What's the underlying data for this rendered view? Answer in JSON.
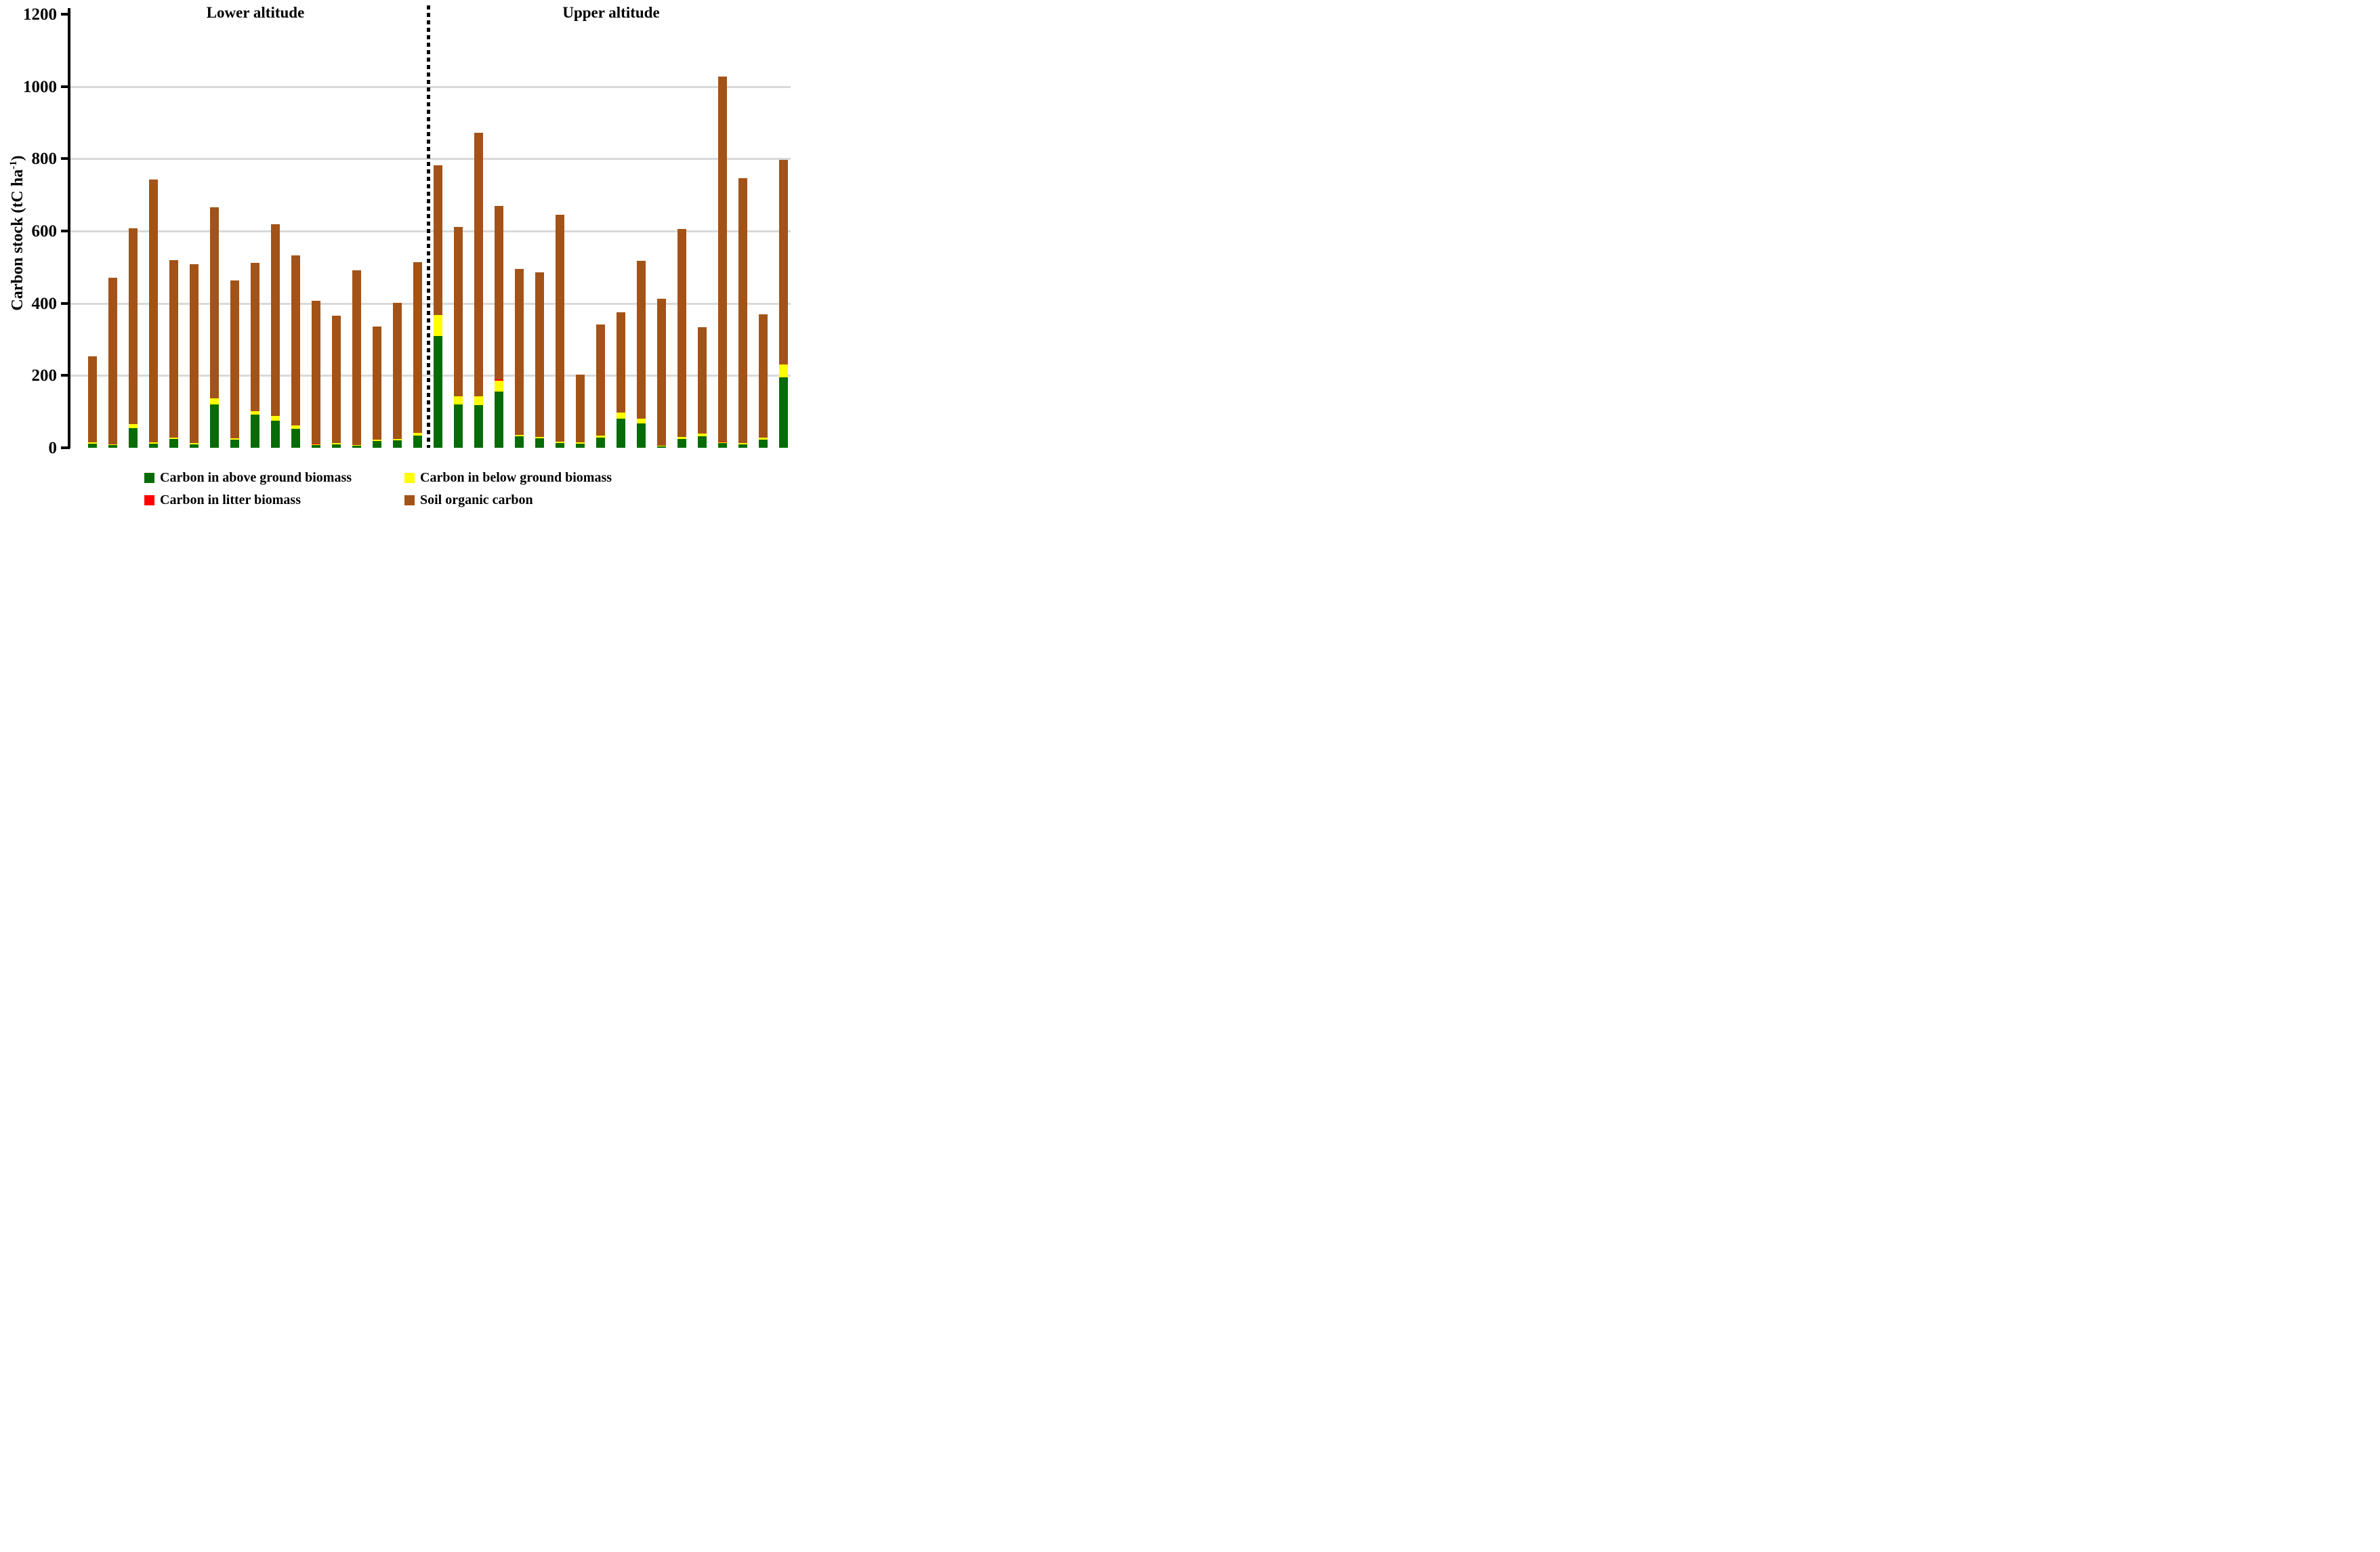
{
  "sections": {
    "lower": "Lower altitude",
    "upper": "Upper altitude"
  },
  "y_axis": {
    "label_pre": "Carbon stock (tC ha",
    "label_sup": "-1",
    "label_post": ")",
    "ticks": [
      0,
      200,
      400,
      600,
      800,
      1000,
      1200
    ]
  },
  "colors": {
    "agb": "#076c07",
    "bgb": "#ffff00",
    "litter": "#ff0000",
    "soc": "#a35317",
    "gridline": "#d9d9d9",
    "axis": "#000000"
  },
  "legend": [
    {
      "color_key": "agb",
      "label": "Carbon in above ground biomass"
    },
    {
      "color_key": "bgb",
      "label": "Carbon in below ground biomass"
    },
    {
      "color_key": "litter",
      "label": "Carbon in litter biomass"
    },
    {
      "color_key": "soc",
      "label": "Soil organic carbon"
    }
  ],
  "chart_data": {
    "type": "bar",
    "stacked": true,
    "ylabel": "Carbon stock (tC ha-1)",
    "ylim": [
      0,
      1200
    ],
    "gridlines": [
      200,
      400,
      600,
      800,
      1000
    ],
    "legend_position": "bottom",
    "series_order": [
      "agb",
      "bgb",
      "litter",
      "soc"
    ],
    "groups": [
      {
        "name": "Lower altitude",
        "bars": [
          {
            "agb": 12,
            "bgb": 3,
            "litter": 0,
            "soc": 239,
            "total": 254
          },
          {
            "agb": 7,
            "bgb": 2,
            "litter": 0,
            "soc": 461,
            "total": 470
          },
          {
            "agb": 54,
            "bgb": 12,
            "litter": 0,
            "soc": 541,
            "total": 607
          },
          {
            "agb": 11,
            "bgb": 3,
            "litter": 0,
            "soc": 728,
            "total": 742
          },
          {
            "agb": 25,
            "bgb": 4,
            "litter": 0,
            "soc": 491,
            "total": 520
          },
          {
            "agb": 10,
            "bgb": 3,
            "litter": 0,
            "soc": 495,
            "total": 508
          },
          {
            "agb": 120,
            "bgb": 16,
            "litter": 0,
            "soc": 529,
            "total": 665
          },
          {
            "agb": 22,
            "bgb": 4,
            "litter": 0,
            "soc": 437,
            "total": 463
          },
          {
            "agb": 92,
            "bgb": 10,
            "litter": 0,
            "soc": 410,
            "total": 512
          },
          {
            "agb": 75,
            "bgb": 14,
            "litter": 0,
            "soc": 531,
            "total": 620
          },
          {
            "agb": 53,
            "bgb": 10,
            "litter": 0,
            "soc": 470,
            "total": 533
          },
          {
            "agb": 7,
            "bgb": 1,
            "litter": 2,
            "soc": 395,
            "total": 405
          },
          {
            "agb": 10,
            "bgb": 3,
            "litter": 0,
            "soc": 352,
            "total": 365
          },
          {
            "agb": 5,
            "bgb": 2,
            "litter": 0,
            "soc": 483,
            "total": 490
          },
          {
            "agb": 19,
            "bgb": 4,
            "litter": 0,
            "soc": 314,
            "total": 337
          },
          {
            "agb": 20,
            "bgb": 4,
            "litter": 0,
            "soc": 376,
            "total": 400
          },
          {
            "agb": 34,
            "bgb": 8,
            "litter": 0,
            "soc": 473,
            "total": 515
          }
        ]
      },
      {
        "name": "Upper altitude",
        "bars": [
          {
            "agb": 310,
            "bgb": 58,
            "litter": 0,
            "soc": 415,
            "total": 783
          },
          {
            "agb": 120,
            "bgb": 23,
            "litter": 0,
            "soc": 469,
            "total": 612
          },
          {
            "agb": 119,
            "bgb": 24,
            "litter": 0,
            "soc": 730,
            "total": 873
          },
          {
            "agb": 155,
            "bgb": 30,
            "litter": 3,
            "soc": 480,
            "total": 668
          },
          {
            "agb": 31,
            "bgb": 4,
            "litter": 0,
            "soc": 460,
            "total": 495
          },
          {
            "agb": 27,
            "bgb": 4,
            "litter": 0,
            "soc": 455,
            "total": 486
          },
          {
            "agb": 14,
            "bgb": 3,
            "litter": 0,
            "soc": 628,
            "total": 645
          },
          {
            "agb": 12,
            "bgb": 3,
            "litter": 0,
            "soc": 188,
            "total": 203
          },
          {
            "agb": 29,
            "bgb": 6,
            "litter": 0,
            "soc": 307,
            "total": 342
          },
          {
            "agb": 80,
            "bgb": 16,
            "litter": 0,
            "soc": 277,
            "total": 373
          },
          {
            "agb": 68,
            "bgb": 13,
            "litter": 0,
            "soc": 436,
            "total": 517
          },
          {
            "agb": 3,
            "bgb": 2,
            "litter": 0,
            "soc": 407,
            "total": 412
          },
          {
            "agb": 24,
            "bgb": 5,
            "litter": 0,
            "soc": 575,
            "total": 604
          },
          {
            "agb": 31,
            "bgb": 7,
            "litter": 0,
            "soc": 294,
            "total": 332
          },
          {
            "agb": 14,
            "bgb": 1,
            "litter": 2,
            "soc": 1010,
            "total": 1027
          },
          {
            "agb": 9,
            "bgb": 3,
            "litter": 0,
            "soc": 733,
            "total": 745
          },
          {
            "agb": 23,
            "bgb": 5,
            "litter": 0,
            "soc": 342,
            "total": 370
          },
          {
            "agb": 195,
            "bgb": 35,
            "litter": 0,
            "soc": 567,
            "total": 797
          }
        ]
      }
    ]
  }
}
